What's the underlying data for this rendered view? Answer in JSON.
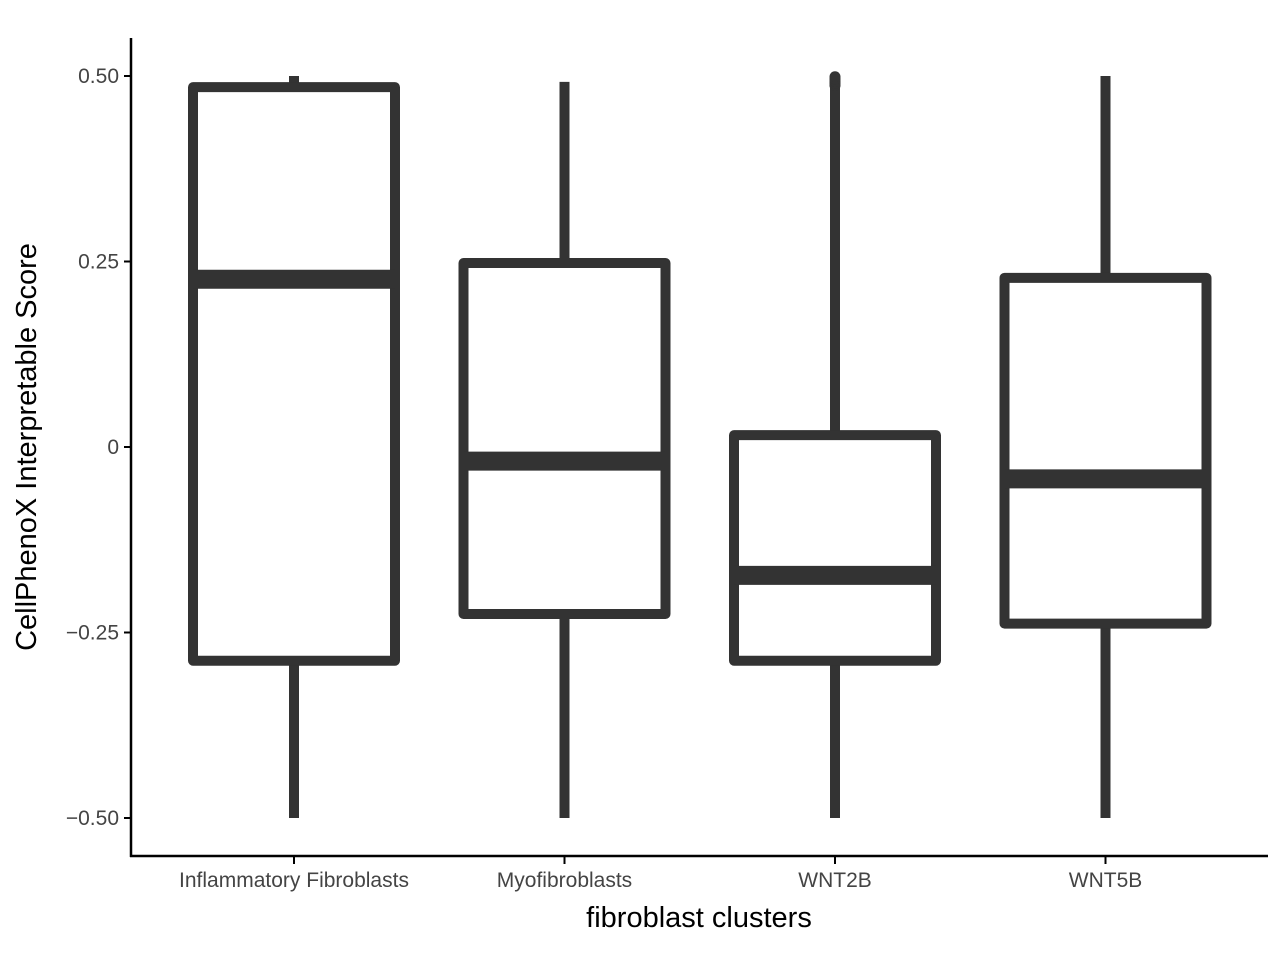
{
  "chart_data": {
    "type": "box",
    "title": "",
    "xlabel": "fibroblast clusters",
    "ylabel": "CellPhenoX Interpretable Score",
    "ylim": [
      -0.55,
      0.55
    ],
    "yticks": [
      0.5,
      0.25,
      0,
      -0.25,
      -0.5
    ],
    "ytick_labels": [
      "0.50",
      "0.25",
      "0",
      "−0.25",
      "−0.50"
    ],
    "grid": false,
    "legend": "none",
    "box_color": "#333333",
    "categories": [
      "Inflammatory Fibroblasts",
      "Myofibroblasts",
      "WNT2B",
      "WNT5B"
    ],
    "boxes": [
      {
        "category": "Inflammatory Fibroblasts",
        "whisker_low": -0.5,
        "q1": -0.288,
        "median": 0.226,
        "q3": 0.485,
        "whisker_high": 0.5,
        "outliers": []
      },
      {
        "category": "Myofibroblasts",
        "whisker_low": -0.5,
        "q1": -0.225,
        "median": -0.019,
        "q3": 0.248,
        "whisker_high": 0.492,
        "outliers": []
      },
      {
        "category": "WNT2B",
        "whisker_low": -0.5,
        "q1": -0.288,
        "median": -0.173,
        "q3": 0.016,
        "whisker_high": 0.485,
        "outliers": [
          0.487,
          0.49,
          0.493,
          0.496,
          0.499
        ]
      },
      {
        "category": "WNT5B",
        "whisker_low": -0.5,
        "q1": -0.238,
        "median": -0.043,
        "q3": 0.228,
        "whisker_high": 0.5,
        "outliers": []
      }
    ]
  }
}
